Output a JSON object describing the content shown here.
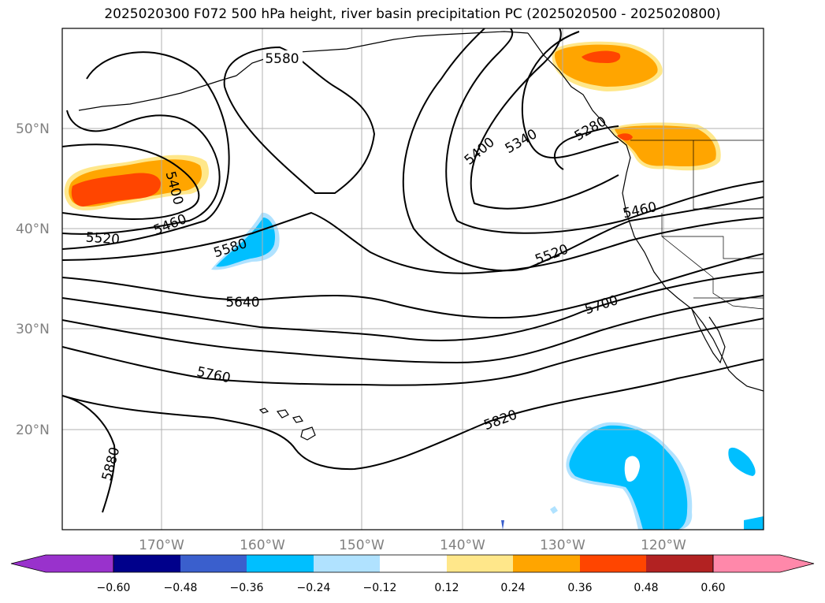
{
  "title": "2025020300 F072 500 hPa height, river basin precipitation PC (2025020500 - 2025020800)",
  "lat_labels": [
    "50°N",
    "40°N",
    "30°N",
    "20°N"
  ],
  "lon_labels": [
    "170°W",
    "160°W",
    "150°W",
    "140°W",
    "130°W",
    "120°W"
  ],
  "contour_labels": [
    "5580",
    "5400",
    "5460",
    "5520",
    "5580",
    "5640",
    "5760",
    "5880",
    "5400",
    "5340",
    "5280",
    "5460",
    "5520",
    "5700",
    "5820"
  ],
  "colorbar": {
    "ticks": [
      "−0.60",
      "−0.48",
      "−0.36",
      "−0.24",
      "−0.12",
      "0.12",
      "0.24",
      "0.36",
      "0.48",
      "0.60"
    ],
    "colors": [
      "#9932cc",
      "#00008b",
      "#3a5fcd",
      "#00bfff",
      "#b0e2ff",
      "#ffffff",
      "#ffe78a",
      "#ffa500",
      "#ff4500",
      "#b22222",
      "#ff88aa"
    ]
  },
  "shading_colors": {
    "orange": "#ffa500",
    "red_orange": "#ff4500",
    "light_yellow": "#ffe78a",
    "deep_sky_blue": "#00bfff",
    "light_blue": "#b0e2ff",
    "dark_blue": "#3a5fcd"
  }
}
